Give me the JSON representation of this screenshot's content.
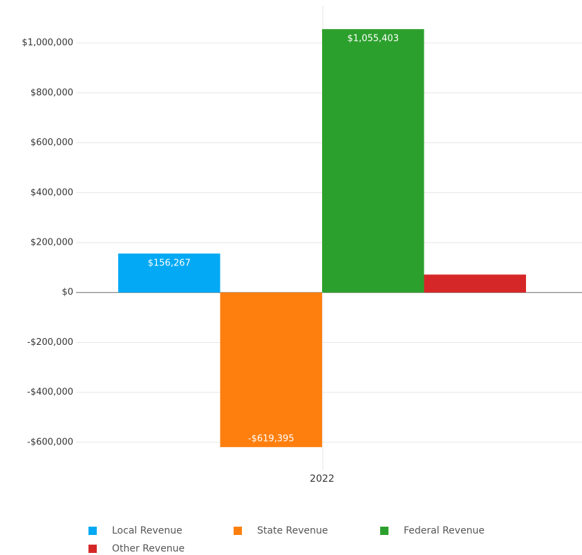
{
  "chart_data": {
    "type": "bar",
    "categories": [
      "2022"
    ],
    "series": [
      {
        "name": "Local Revenue",
        "color": "#03a9f4",
        "values": [
          156267
        ],
        "value_labels": [
          "$156,267"
        ]
      },
      {
        "name": "State Revenue",
        "color": "#ff7f0e",
        "values": [
          -619395
        ],
        "value_labels": [
          "-$619,395"
        ]
      },
      {
        "name": "Federal Revenue",
        "color": "#2ca02c",
        "values": [
          1055403
        ],
        "value_labels": [
          "$1,055,403"
        ]
      },
      {
        "name": "Other Revenue",
        "color": "#d62728",
        "values": [
          72000
        ]
      }
    ],
    "ylim": [
      -700000,
      1150000
    ],
    "yticks": [
      {
        "value": -600000,
        "label": "-$600,000"
      },
      {
        "value": -400000,
        "label": "-$400,000"
      },
      {
        "value": -200000,
        "label": "-$200,000"
      },
      {
        "value": 0,
        "label": "$0"
      },
      {
        "value": 200000,
        "label": "$200,000"
      },
      {
        "value": 400000,
        "label": "$400,000"
      },
      {
        "value": 600000,
        "label": "$600,000"
      },
      {
        "value": 800000,
        "label": "$800,000"
      },
      {
        "value": 1000000,
        "label": "$1,000,000"
      }
    ],
    "grid": true,
    "legend": "bottom"
  }
}
